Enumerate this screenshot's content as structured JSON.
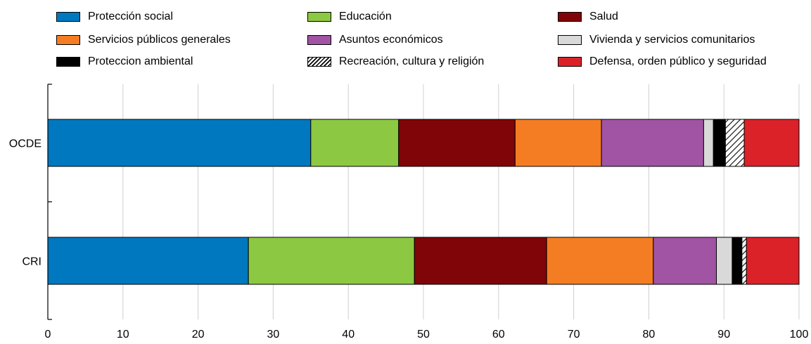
{
  "chart_data": {
    "type": "bar",
    "orientation": "horizontal",
    "stacked": true,
    "title": "",
    "xlabel": "",
    "ylabel": "",
    "xlim": [
      0,
      100
    ],
    "xticks": [
      0,
      10,
      20,
      30,
      40,
      50,
      60,
      70,
      80,
      90,
      100
    ],
    "grid": true,
    "legend_position": "top",
    "categories": [
      "OCDE",
      "CRI"
    ],
    "series": [
      {
        "name": "Protección social",
        "color": "#0078bf",
        "values": [
          35.0,
          26.7
        ]
      },
      {
        "name": "Educación",
        "color": "#8cc841",
        "values": [
          11.7,
          22.1
        ]
      },
      {
        "name": "Salud",
        "color": "#7f0508",
        "values": [
          15.5,
          17.6
        ]
      },
      {
        "name": "Servicios públicos generales",
        "color": "#f47d23",
        "values": [
          11.5,
          14.2
        ]
      },
      {
        "name": "Asuntos económicos",
        "color": "#a154a3",
        "values": [
          13.6,
          8.4
        ]
      },
      {
        "name": "Vivienda y servicios comunitarios",
        "color": "#d9d9d9",
        "values": [
          1.3,
          2.1
        ]
      },
      {
        "name": "Proteccion ambiental",
        "color": "#000000",
        "values": [
          1.6,
          1.3
        ]
      },
      {
        "name": "Recreación, cultura y religión",
        "color": "#ffffff",
        "pattern": "hatch",
        "values": [
          2.5,
          0.6
        ]
      },
      {
        "name": "Defensa, orden público y seguridad",
        "color": "#dc2229",
        "values": [
          7.3,
          7.0
        ]
      }
    ]
  }
}
